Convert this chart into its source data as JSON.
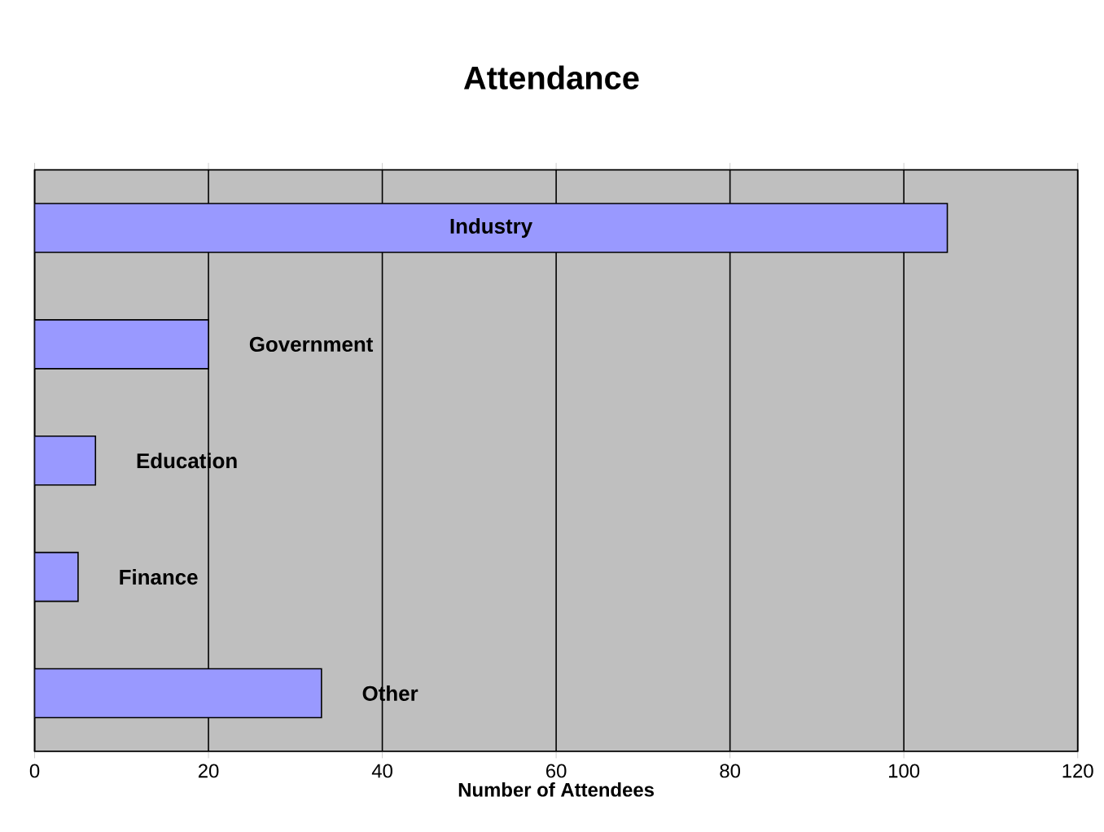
{
  "chart_data": {
    "type": "bar",
    "orientation": "horizontal",
    "title": "Attendance",
    "xlabel": "Number of Attendees",
    "categories": [
      "Industry",
      "Government",
      "Education",
      "Finance",
      "Other"
    ],
    "values": [
      105,
      20,
      7,
      5,
      33
    ],
    "color": "#9999ff",
    "xlim": [
      0,
      120
    ],
    "xticks": [
      0,
      20,
      40,
      60,
      80,
      100,
      120
    ],
    "grid": "x"
  }
}
